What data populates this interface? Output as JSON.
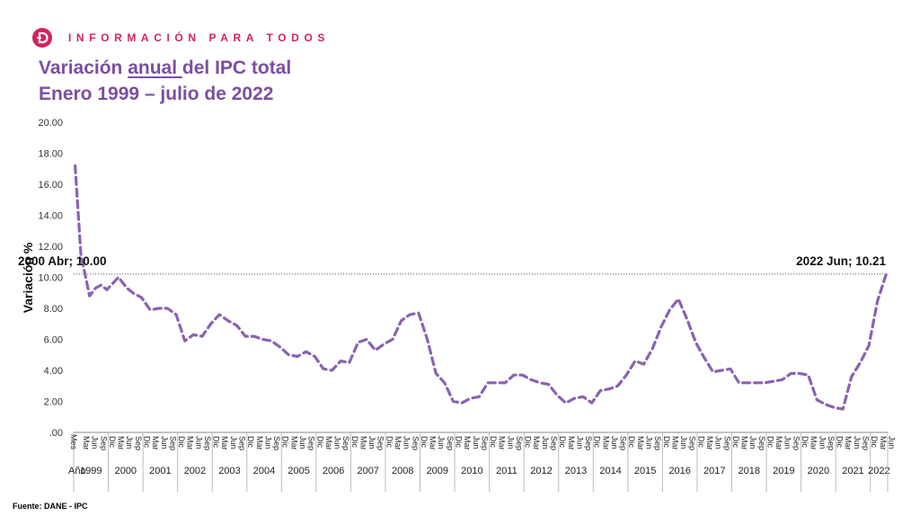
{
  "header": {
    "brand": "INFORMACIÓN PARA TODOS",
    "title_line1_pre": "Variación ",
    "title_line1_underlined": "anual ",
    "title_line1_post": "del IPC total",
    "title_line2": "Enero 1999 – julio de 2022",
    "source": "Fuente: DANE - IPC"
  },
  "colors": {
    "brand": "#d6225f",
    "series": "#8a63b0",
    "title": "#7b4fa0"
  },
  "chart_data": {
    "type": "line",
    "ylabel": "Variación %",
    "ylim": [
      0,
      20
    ],
    "yticks": [
      "20.00",
      "18.00",
      "16.00",
      "14.00",
      "12.00",
      "10.00",
      "8.00",
      "6.00",
      "4.00",
      "2.00",
      ".00"
    ],
    "x_axis_row1_label": "Mes",
    "x_axis_row2_label": "Año",
    "month_ticks": [
      "Mar",
      "Jun",
      "Sep",
      "Dic"
    ],
    "years": [
      "1999",
      "2000",
      "2001",
      "2002",
      "2003",
      "2004",
      "2005",
      "2006",
      "2007",
      "2008",
      "2009",
      "2010",
      "2011",
      "2012",
      "2013",
      "2014",
      "2015",
      "2016",
      "2017",
      "2018",
      "2019",
      "2020",
      "2021",
      "2022"
    ],
    "last_year_month_ticks": [
      "Mar",
      "Jun"
    ],
    "series": [
      {
        "line_style": "dashed",
        "x": [
          "1999-01",
          "1999-03",
          "1999-06",
          "1999-08",
          "1999-10",
          "1999-12",
          "2000-04",
          "2000-07",
          "2000-09",
          "2000-12",
          "2001-03",
          "2001-06",
          "2001-09",
          "2001-12",
          "2002-03",
          "2002-06",
          "2002-09",
          "2002-12",
          "2003-03",
          "2003-06",
          "2003-09",
          "2003-12",
          "2004-03",
          "2004-06",
          "2004-09",
          "2004-12",
          "2005-03",
          "2005-06",
          "2005-09",
          "2005-12",
          "2006-03",
          "2006-06",
          "2006-09",
          "2006-12",
          "2007-03",
          "2007-06",
          "2007-09",
          "2007-12",
          "2008-03",
          "2008-06",
          "2008-09",
          "2008-12",
          "2009-03",
          "2009-06",
          "2009-09",
          "2009-12",
          "2010-03",
          "2010-06",
          "2010-09",
          "2010-12",
          "2011-03",
          "2011-06",
          "2011-09",
          "2011-12",
          "2012-03",
          "2012-06",
          "2012-09",
          "2012-12",
          "2013-03",
          "2013-06",
          "2013-09",
          "2013-12",
          "2014-03",
          "2014-06",
          "2014-09",
          "2014-12",
          "2015-03",
          "2015-06",
          "2015-09",
          "2015-12",
          "2016-03",
          "2016-06",
          "2016-09",
          "2016-12",
          "2017-03",
          "2017-06",
          "2017-09",
          "2017-12",
          "2018-03",
          "2018-06",
          "2018-09",
          "2018-12",
          "2019-03",
          "2019-06",
          "2019-09",
          "2019-12",
          "2020-03",
          "2020-06",
          "2020-09",
          "2020-12",
          "2021-03",
          "2021-06",
          "2021-09",
          "2021-12",
          "2022-03",
          "2022-06"
        ],
        "y": [
          17.2,
          11.5,
          8.8,
          9.3,
          9.5,
          9.2,
          10.0,
          9.3,
          9.0,
          8.7,
          7.9,
          8.0,
          8.0,
          7.6,
          5.9,
          6.3,
          6.2,
          7.0,
          7.6,
          7.2,
          6.9,
          6.2,
          6.2,
          6.0,
          5.9,
          5.5,
          5.0,
          4.9,
          5.2,
          4.9,
          4.1,
          4.0,
          4.6,
          4.5,
          5.8,
          6.0,
          5.3,
          5.7,
          6.0,
          7.2,
          7.6,
          7.7,
          6.0,
          3.8,
          3.2,
          2.0,
          1.9,
          2.2,
          2.3,
          3.2,
          3.2,
          3.2,
          3.7,
          3.7,
          3.4,
          3.2,
          3.1,
          2.4,
          1.9,
          2.2,
          2.3,
          1.9,
          2.7,
          2.8,
          3.0,
          3.7,
          4.6,
          4.4,
          5.4,
          6.8,
          7.9,
          8.6,
          7.3,
          5.8,
          4.8,
          3.9,
          4.0,
          4.1,
          3.2,
          3.2,
          3.2,
          3.2,
          3.3,
          3.4,
          3.8,
          3.8,
          3.7,
          2.1,
          1.8,
          1.6,
          1.5,
          3.6,
          4.5,
          5.6,
          8.5,
          10.21
        ]
      }
    ],
    "annotations": [
      {
        "text": "2000 Abr; 10.00",
        "x": "2000-04",
        "y": 10.0
      },
      {
        "text": "2022 Jun; 10.21",
        "x": "2022-06",
        "y": 10.21
      }
    ],
    "reference_line": {
      "y": 10.21,
      "style": "dotted"
    },
    "grid": false,
    "legend": "none"
  }
}
